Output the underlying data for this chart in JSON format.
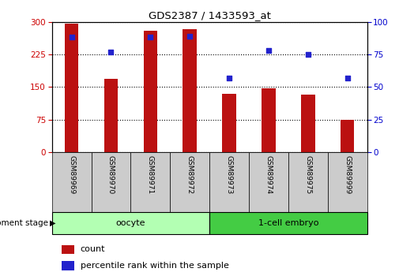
{
  "title": "GDS2387 / 1433593_at",
  "samples": [
    "GSM89969",
    "GSM89970",
    "GSM89971",
    "GSM89972",
    "GSM89973",
    "GSM89974",
    "GSM89975",
    "GSM89999"
  ],
  "counts": [
    296,
    168,
    280,
    283,
    135,
    148,
    132,
    75
  ],
  "percentiles": [
    88,
    77,
    88,
    89,
    57,
    78,
    75,
    57
  ],
  "ylim_left": [
    0,
    300
  ],
  "ylim_right": [
    0,
    100
  ],
  "yticks_left": [
    0,
    75,
    150,
    225,
    300
  ],
  "yticks_right": [
    0,
    25,
    50,
    75,
    100
  ],
  "groups": [
    {
      "label": "oocyte",
      "start": 0,
      "end": 3,
      "color": "#b3ffb3"
    },
    {
      "label": "1-cell embryo",
      "start": 4,
      "end": 7,
      "color": "#44cc44"
    }
  ],
  "bar_color": "#bb1111",
  "dot_color": "#2222cc",
  "bar_width": 0.35,
  "grid_color": "#000000",
  "bg_color": "#ffffff",
  "label_color_left": "#cc0000",
  "label_color_right": "#0000cc",
  "tick_label_bg": "#cccccc",
  "dev_stage_label": "development stage",
  "legend_count": "count",
  "legend_pct": "percentile rank within the sample"
}
